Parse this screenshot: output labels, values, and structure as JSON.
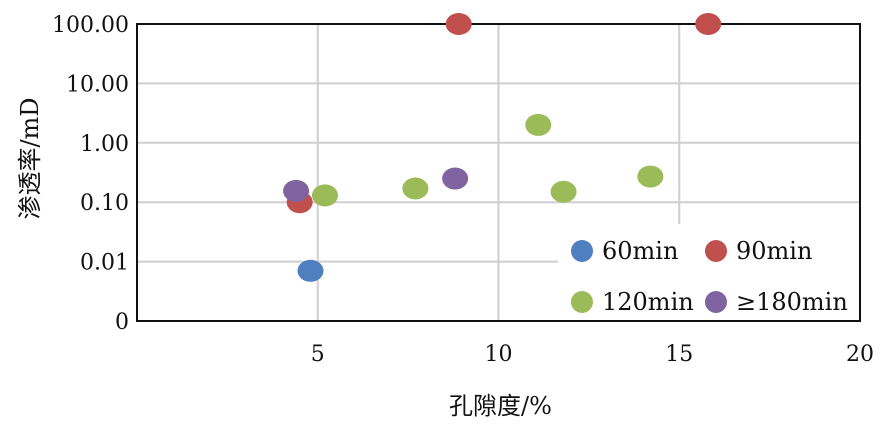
{
  "chart_data": {
    "type": "scatter",
    "title": "",
    "xlabel": "孔隙度/%",
    "ylabel": "渗透率/mD",
    "xlim": [
      0,
      20
    ],
    "x_ticks": [
      "5",
      "10",
      "15",
      "20"
    ],
    "y_tick_labels": [
      "0",
      "0.01",
      "0.10",
      "1.00",
      "10.00",
      "100.00"
    ],
    "y_scale": "log",
    "grid": true,
    "legend_position": "bottom-right",
    "series": [
      {
        "name": "60min",
        "color": "#4f7fbf",
        "points": [
          {
            "x": 4.8,
            "y": 0.007
          }
        ]
      },
      {
        "name": "90min",
        "color": "#c0504d",
        "points": [
          {
            "x": 4.5,
            "y": 0.1
          },
          {
            "x": 8.9,
            "y": 100
          },
          {
            "x": 15.8,
            "y": 100
          }
        ]
      },
      {
        "name": "120min",
        "color": "#9bbb59",
        "points": [
          {
            "x": 5.2,
            "y": 0.13
          },
          {
            "x": 7.7,
            "y": 0.17
          },
          {
            "x": 11.1,
            "y": 2.0
          },
          {
            "x": 11.8,
            "y": 0.15
          },
          {
            "x": 14.2,
            "y": 0.27
          }
        ]
      },
      {
        "name": "≥180min",
        "color": "#8064a2",
        "points": [
          {
            "x": 4.4,
            "y": 0.155
          },
          {
            "x": 8.8,
            "y": 0.25
          }
        ]
      }
    ]
  }
}
